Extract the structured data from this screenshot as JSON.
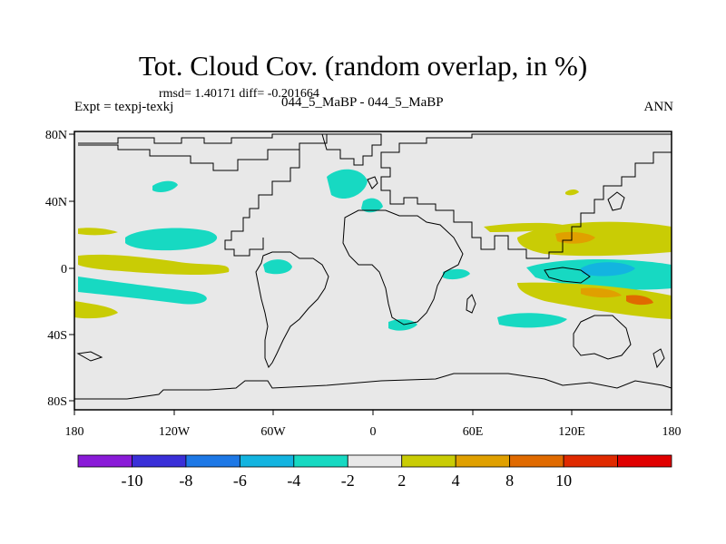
{
  "title": "Tot. Cloud Cov. (random overlap, in %)",
  "stats": "rmsd= 1.40171 diff= -0.201664",
  "expt": "Expt = texpj-texkj",
  "cases": "044_5_MaBP - 044_5_MaBP",
  "season": "ANN",
  "x_ticks": [
    "180",
    "120W",
    "60W",
    "0",
    "60E",
    "120E",
    "180"
  ],
  "y_ticks": [
    "80N",
    "40N",
    "0",
    "40S",
    "80S"
  ],
  "colorbar": {
    "labels": [
      "-10",
      "-8",
      "-6",
      "-4",
      "-2",
      "2",
      "4",
      "8",
      "10"
    ],
    "colors": [
      "#8a1bd8",
      "#3a2fd8",
      "#1d78e6",
      "#13b4e0",
      "#17d9c2",
      "#e8e8e8",
      "#c9cc05",
      "#e0a000",
      "#e06a00",
      "#e02a00",
      "#e00000"
    ]
  },
  "colors": {
    "land_background": "#e8e8e8",
    "coastline": "#000000"
  }
}
